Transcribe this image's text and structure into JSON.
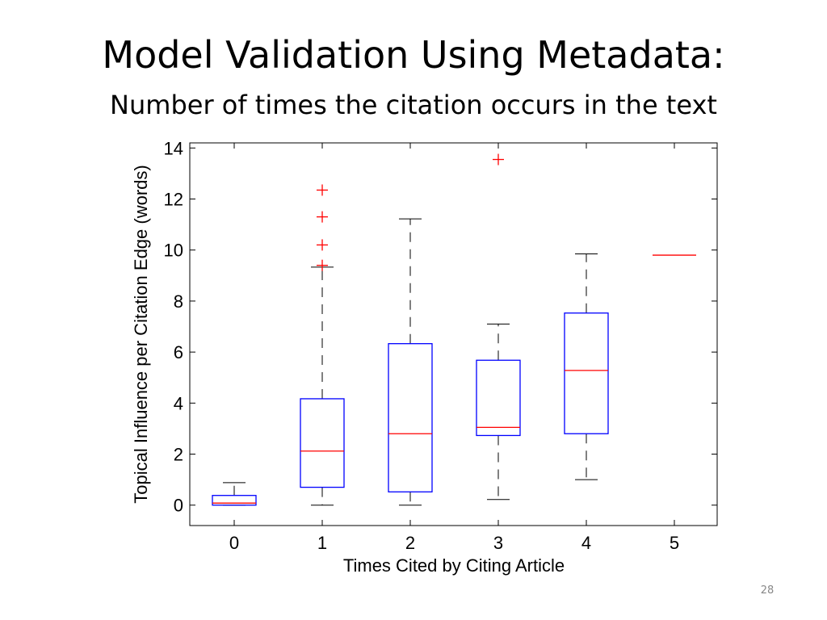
{
  "slide": {
    "title": "Model Validation Using Metadata:",
    "subtitle": "Number of times the citation occurs in the text",
    "page_number": "28"
  },
  "chart_data": {
    "type": "box",
    "title": "",
    "xlabel": "Times Cited by Citing Article",
    "ylabel": "Topical Influence per Citation Edge (words)",
    "ylim": [
      -0.8,
      14.2
    ],
    "yticks": [
      0,
      2,
      4,
      6,
      8,
      10,
      12,
      14
    ],
    "grid": false,
    "colors": {
      "box": "#0000ff",
      "median": "#ff0000",
      "whisker": "#000000",
      "outlier": "#ff0000"
    },
    "categories": [
      "0",
      "1",
      "2",
      "3",
      "4",
      "5"
    ],
    "boxes": [
      {
        "category": "0",
        "whisker_low": 0.0,
        "q1": 0.0,
        "median": 0.08,
        "q3": 0.38,
        "whisker_high": 0.88,
        "outliers": []
      },
      {
        "category": "1",
        "whisker_low": 0.0,
        "q1": 0.7,
        "median": 2.12,
        "q3": 4.17,
        "whisker_high": 9.33,
        "outliers": [
          9.4,
          10.2,
          11.3,
          12.35
        ]
      },
      {
        "category": "2",
        "whisker_low": 0.0,
        "q1": 0.52,
        "median": 2.8,
        "q3": 6.33,
        "whisker_high": 11.22,
        "outliers": []
      },
      {
        "category": "3",
        "whisker_low": 0.22,
        "q1": 2.73,
        "median": 3.05,
        "q3": 5.68,
        "whisker_high": 7.1,
        "outliers": [
          13.55
        ]
      },
      {
        "category": "4",
        "whisker_low": 1.0,
        "q1": 2.8,
        "median": 5.28,
        "q3": 7.53,
        "whisker_high": 9.85,
        "outliers": []
      },
      {
        "category": "5",
        "whisker_low": 9.8,
        "q1": 9.8,
        "median": 9.8,
        "q3": 9.8,
        "whisker_high": 9.8,
        "outliers": []
      }
    ]
  }
}
